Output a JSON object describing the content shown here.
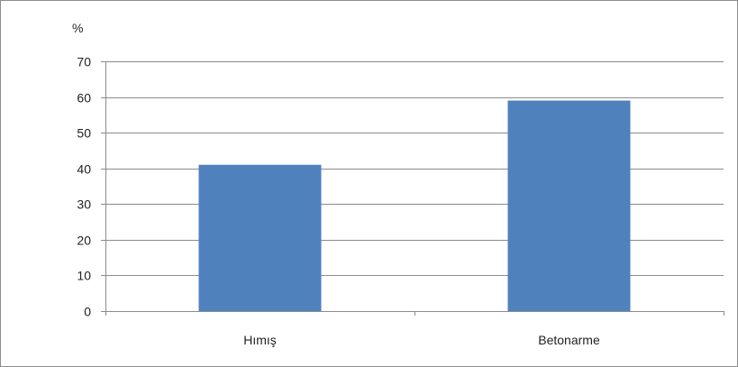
{
  "chart_data": {
    "type": "bar",
    "categories": [
      "Hımış",
      "Betonarme"
    ],
    "values": [
      41,
      59
    ],
    "ylim": [
      0,
      70
    ],
    "yticks": [
      0,
      10,
      20,
      30,
      40,
      50,
      60,
      70
    ],
    "ylabel": "%",
    "xlabel": "",
    "title": "",
    "grid": true,
    "bar_color": "#4f81bd",
    "grid_color": "#8c8c8c",
    "axis_color": "#8c8c8c"
  }
}
